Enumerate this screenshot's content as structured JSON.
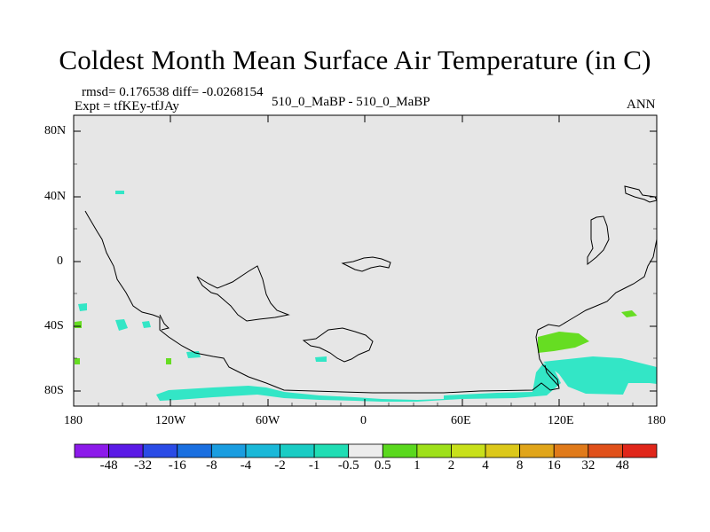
{
  "title": "Coldest Month Mean Surface Air Temperature (in C)",
  "stats_line": "rmsd= 0.176538  diff= -0.0268154",
  "expt_line": "Expt = tfKEy-tfJAy",
  "comparison": "510_0_MaBP - 510_0_MaBP",
  "season": "ANN",
  "y_ticks": [
    "80N",
    "40N",
    "0",
    "40S",
    "80S"
  ],
  "x_ticks": [
    "180",
    "120W",
    "60W",
    "0",
    "60E",
    "120E",
    "180"
  ],
  "colors": {
    "land_bg": "#e6e6e6",
    "coast": "#000000",
    "neg_shade": "#33e6c6",
    "pos_shade": "#66dd22"
  },
  "colorbar": {
    "labels": [
      "-48",
      "-32",
      "-16",
      "-8",
      "-4",
      "-2",
      "-1",
      "-0.5",
      "0.5",
      "1",
      "2",
      "4",
      "8",
      "16",
      "32",
      "48"
    ],
    "colors": [
      "#8c1aea",
      "#5a1ae6",
      "#2a4be6",
      "#1a6fe0",
      "#1a9de0",
      "#1ab8d8",
      "#1accc4",
      "#20ddb4",
      "#ececec",
      "#5ad81e",
      "#9ee01a",
      "#c8e01a",
      "#dcc81a",
      "#e0a51a",
      "#e07a1a",
      "#e0501a",
      "#e0261a"
    ]
  }
}
